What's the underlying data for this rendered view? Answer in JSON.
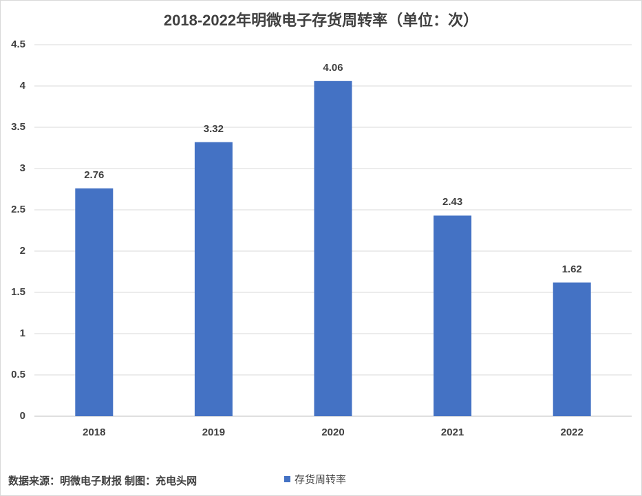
{
  "chart_data": {
    "type": "bar",
    "title": "2018-2022年明微电子存货周转率（单位：次）",
    "categories": [
      "2018",
      "2019",
      "2020",
      "2021",
      "2022"
    ],
    "series": [
      {
        "name": "存货周转率",
        "values": [
          2.76,
          3.32,
          4.06,
          2.43,
          1.62
        ],
        "color": "#4472c4"
      }
    ],
    "ylim": [
      0,
      4.5
    ],
    "yticks": [
      "0",
      "0.5",
      "1",
      "1.5",
      "2",
      "2.5",
      "3",
      "3.5",
      "4",
      "4.5"
    ],
    "grid": true,
    "legend": "bottom",
    "data_labels": [
      "2.76",
      "3.32",
      "4.06",
      "2.43",
      "1.62"
    ]
  },
  "footer": {
    "source": "数据来源：明微电子财报  制图：充电头网"
  }
}
